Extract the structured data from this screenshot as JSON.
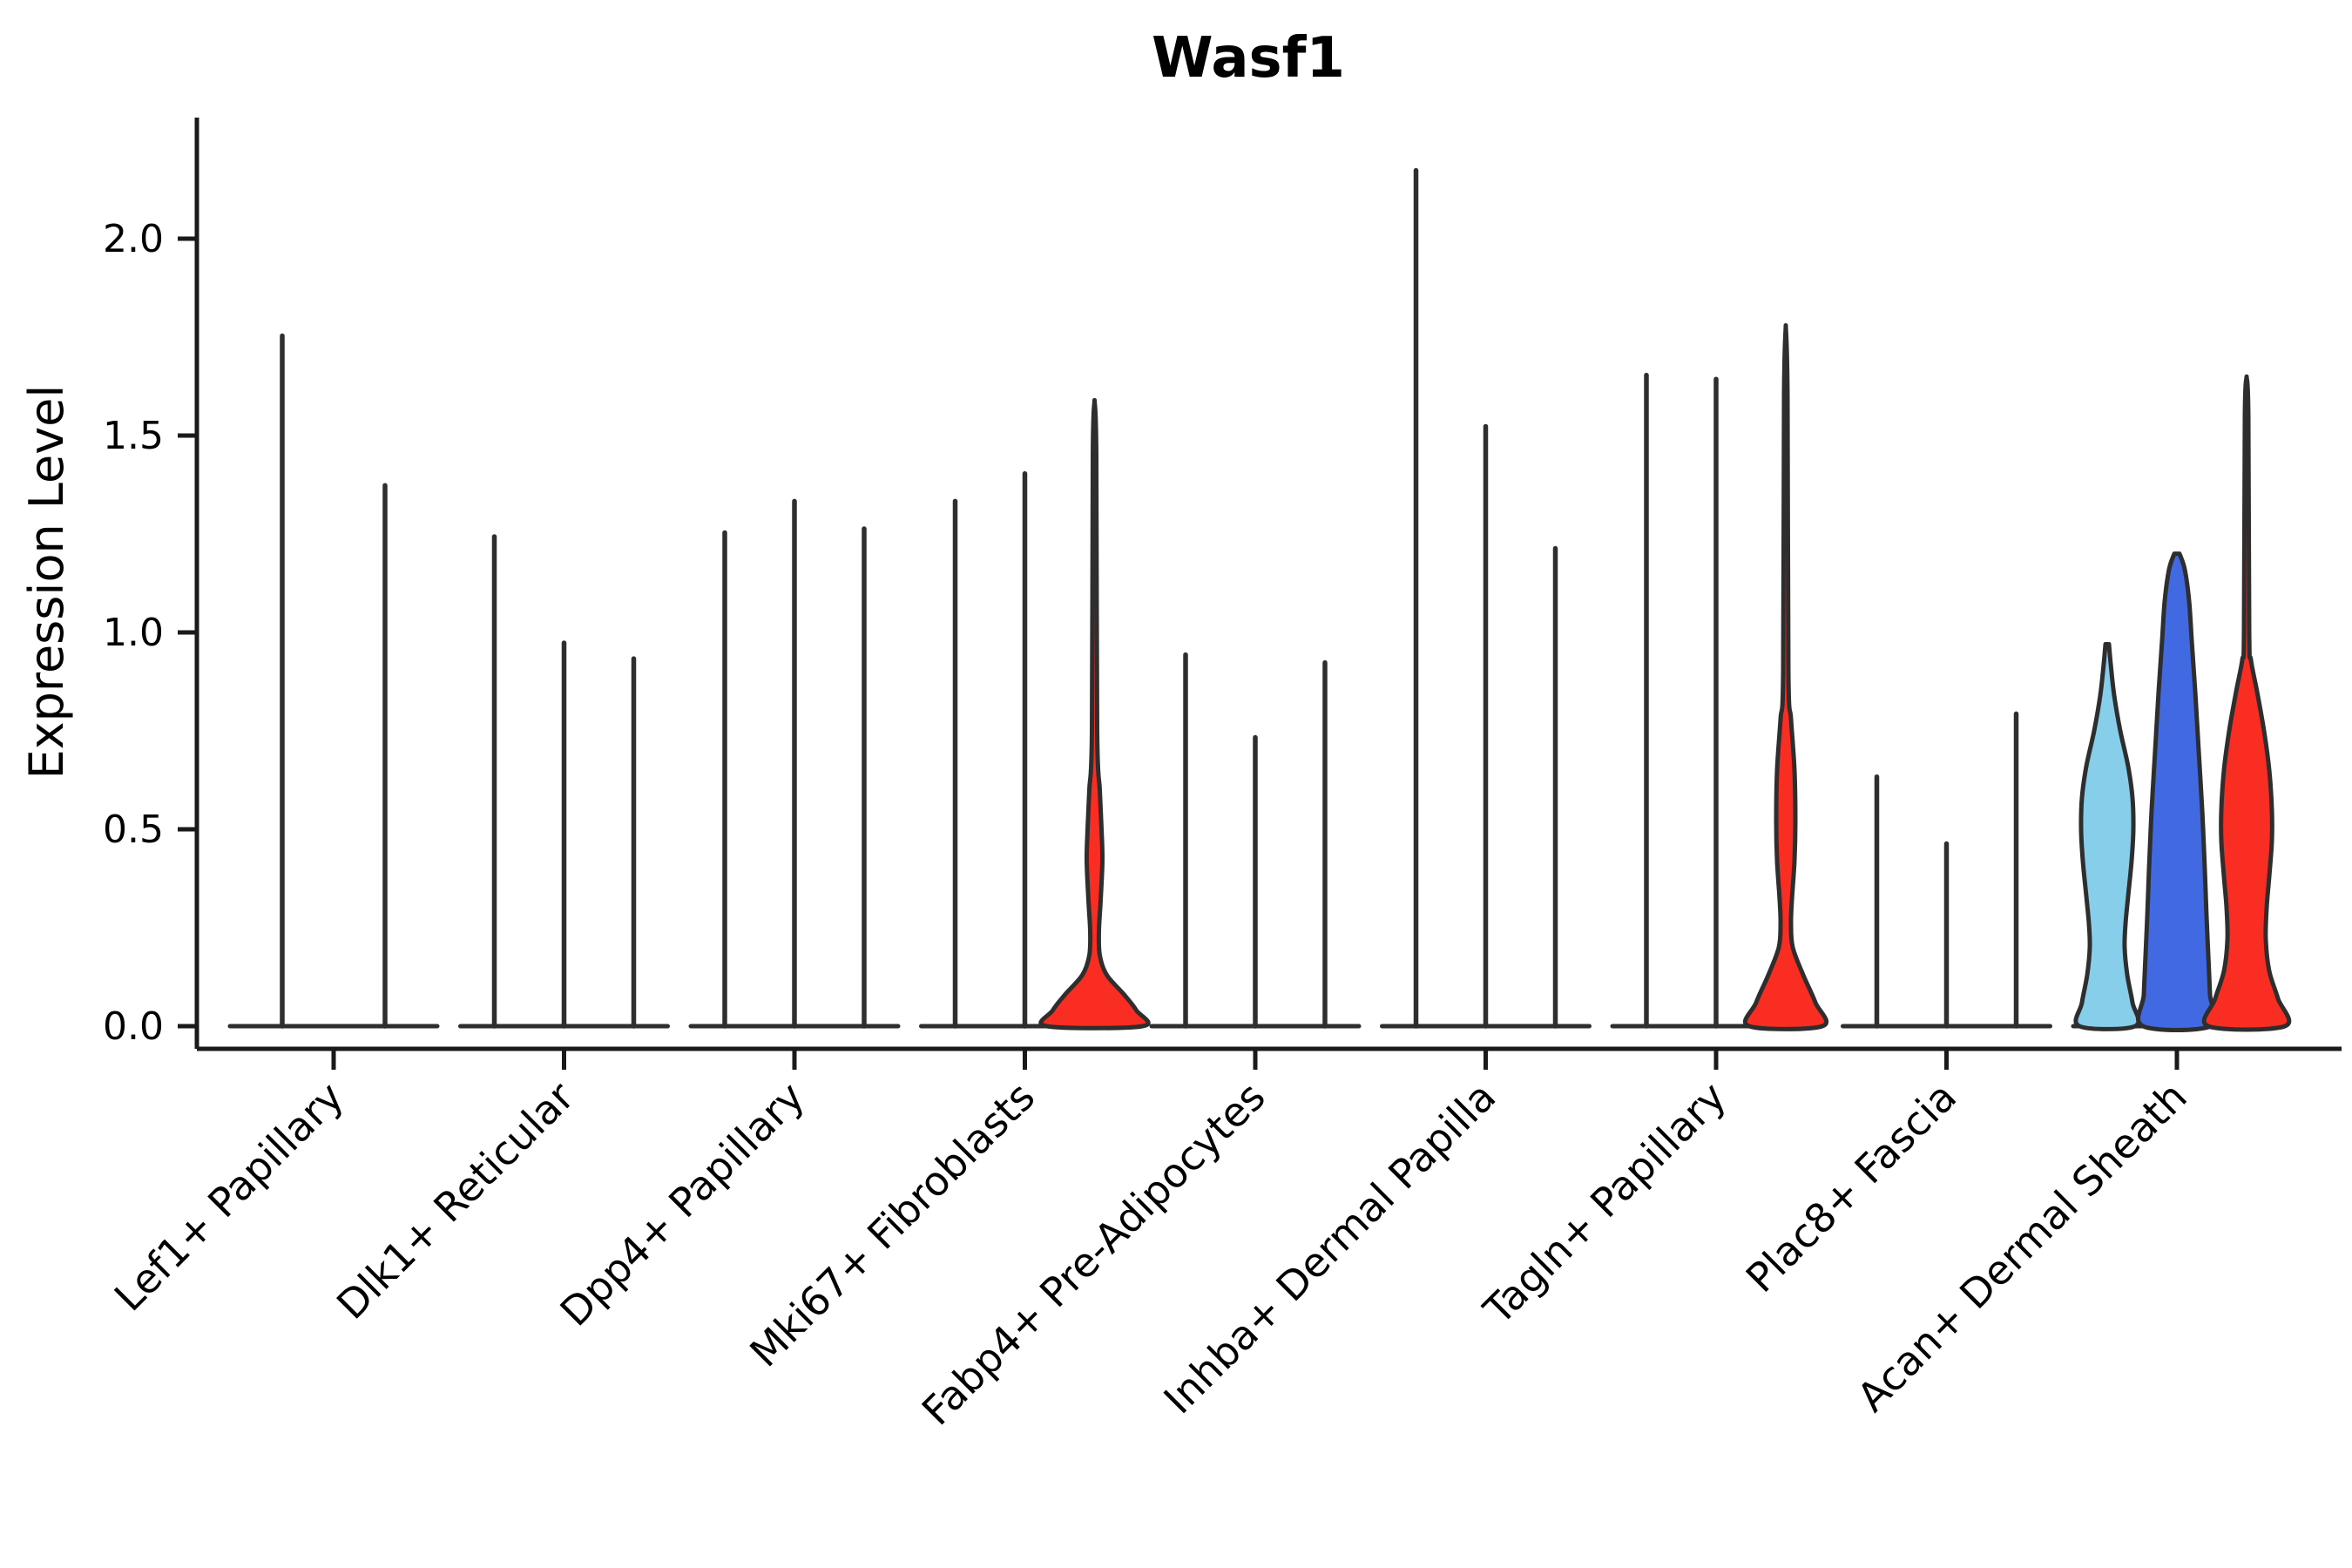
{
  "chart": {
    "title": "Wasf1",
    "ylabel": "Expression Level"
  },
  "chart_data": {
    "type": "violin",
    "title": "Wasf1",
    "xlabel": "",
    "ylabel": "Expression Level",
    "ylim": [
      -0.06,
      2.31
    ],
    "grid": false,
    "legend": null,
    "yticks": [
      {
        "value": 0.0,
        "label": "0.0"
      },
      {
        "value": 0.5,
        "label": "0.5"
      },
      {
        "value": 1.0,
        "label": "1.0"
      },
      {
        "value": 1.5,
        "label": "1.5"
      },
      {
        "value": 2.0,
        "label": "2.0"
      }
    ],
    "categories": [
      "Lef1+ Papillary",
      "Dlk1+ Reticular",
      "Dpp4+ Papillary",
      "Mki67+ Fibroblasts",
      "Fabp4+ Pre-Adipocytes",
      "Inhba+ Dermal Papilla",
      "Tagln+ Papillary",
      "Plac8+ Fascia",
      "Acan+ Dermal Sheath"
    ],
    "style": {
      "outline_color": "#2e2e2e",
      "axis_color": "#1a1a1a",
      "text_color": "#000000",
      "background": "#ffffff",
      "fill_red": "#fa2d23",
      "fill_light_blue": "#87CEEB",
      "fill_dark_blue": "#4169E1"
    },
    "groups": [
      {
        "category": "Lef1+ Papillary",
        "violins": [
          {
            "max": 1.76,
            "fill": null
          },
          {
            "max": 1.38,
            "fill": null
          }
        ]
      },
      {
        "category": "Dlk1+ Reticular",
        "violins": [
          {
            "max": 1.25,
            "fill": null
          },
          {
            "max": 0.98,
            "fill": null
          },
          {
            "max": 0.94,
            "fill": null
          }
        ]
      },
      {
        "category": "Dpp4+ Papillary",
        "violins": [
          {
            "max": 1.26,
            "fill": null
          },
          {
            "max": 1.34,
            "fill": null
          },
          {
            "max": 1.27,
            "fill": null
          }
        ]
      },
      {
        "category": "Mki67+ Fibroblasts",
        "violins": [
          {
            "max": 1.34,
            "fill": null
          },
          {
            "max": 1.41,
            "fill": null
          },
          {
            "max": 1.59,
            "fill": "#fa2d23",
            "profile": [
              [
                1.59,
                0
              ],
              [
                1.45,
                2
              ],
              [
                0.75,
                3
              ],
              [
                0.6,
                6
              ],
              [
                0.5,
                8
              ],
              [
                0.42,
                9
              ],
              [
                0.32,
                7
              ],
              [
                0.24,
                5
              ],
              [
                0.18,
                6
              ],
              [
                0.13,
                14
              ],
              [
                0.08,
                34
              ],
              [
                0.04,
                48
              ],
              [
                0.0,
                55
              ]
            ]
          }
        ]
      },
      {
        "category": "Fabp4+ Pre-Adipocytes",
        "violins": [
          {
            "max": 0.95,
            "fill": null
          },
          {
            "max": 0.74,
            "fill": null
          },
          {
            "max": 0.93,
            "fill": null
          }
        ]
      },
      {
        "category": "Inhba+ Dermal Papilla",
        "violins": [
          {
            "max": 2.18,
            "fill": null
          },
          {
            "max": 1.53,
            "fill": null
          },
          {
            "max": 1.22,
            "fill": null
          }
        ]
      },
      {
        "category": "Tagln+ Papillary",
        "violins": [
          {
            "max": 1.66,
            "fill": null
          },
          {
            "max": 1.65,
            "fill": null
          },
          {
            "max": 1.78,
            "fill": "#fa2d23",
            "profile": [
              [
                1.78,
                0
              ],
              [
                1.6,
                2
              ],
              [
                0.9,
                3
              ],
              [
                0.78,
                6
              ],
              [
                0.65,
                10
              ],
              [
                0.52,
                11
              ],
              [
                0.42,
                10
              ],
              [
                0.32,
                7
              ],
              [
                0.26,
                6
              ],
              [
                0.2,
                8
              ],
              [
                0.13,
                20
              ],
              [
                0.06,
                34
              ],
              [
                0.0,
                42
              ]
            ]
          }
        ]
      },
      {
        "category": "Plac8+ Fascia",
        "violins": [
          {
            "max": 0.64,
            "fill": null
          },
          {
            "max": 0.47,
            "fill": null
          },
          {
            "max": 0.8,
            "fill": null
          }
        ]
      },
      {
        "category": "Acan+ Dermal Sheath",
        "violins": [
          {
            "max": 0.97,
            "fill": "#87CEEB",
            "profile": [
              [
                0.97,
                2
              ],
              [
                0.92,
                4
              ],
              [
                0.84,
                8
              ],
              [
                0.75,
                15
              ],
              [
                0.66,
                24
              ],
              [
                0.58,
                29
              ],
              [
                0.5,
                30
              ],
              [
                0.42,
                28
              ],
              [
                0.33,
                24
              ],
              [
                0.26,
                21
              ],
              [
                0.2,
                20
              ],
              [
                0.13,
                23
              ],
              [
                0.06,
                29
              ],
              [
                0.0,
                32
              ]
            ]
          },
          {
            "max": 1.2,
            "fill": "#4169E1",
            "profile": [
              [
                1.2,
                3
              ],
              [
                1.16,
                9
              ],
              [
                1.08,
                14
              ],
              [
                0.98,
                17
              ],
              [
                0.85,
                21
              ],
              [
                0.7,
                25
              ],
              [
                0.55,
                29
              ],
              [
                0.4,
                32
              ],
              [
                0.28,
                34
              ],
              [
                0.18,
                36
              ],
              [
                0.08,
                38
              ],
              [
                0.0,
                39
              ]
            ]
          },
          {
            "max": 1.65,
            "fill": "#fa2d23",
            "profile": [
              [
                1.65,
                0
              ],
              [
                1.55,
                2
              ],
              [
                1.0,
                3
              ],
              [
                0.93,
                5
              ],
              [
                0.85,
                12
              ],
              [
                0.75,
                20
              ],
              [
                0.65,
                26
              ],
              [
                0.55,
                29
              ],
              [
                0.47,
                29
              ],
              [
                0.38,
                26
              ],
              [
                0.3,
                23
              ],
              [
                0.22,
                22
              ],
              [
                0.14,
                26
              ],
              [
                0.07,
                36
              ],
              [
                0.0,
                44
              ]
            ]
          }
        ]
      }
    ]
  }
}
